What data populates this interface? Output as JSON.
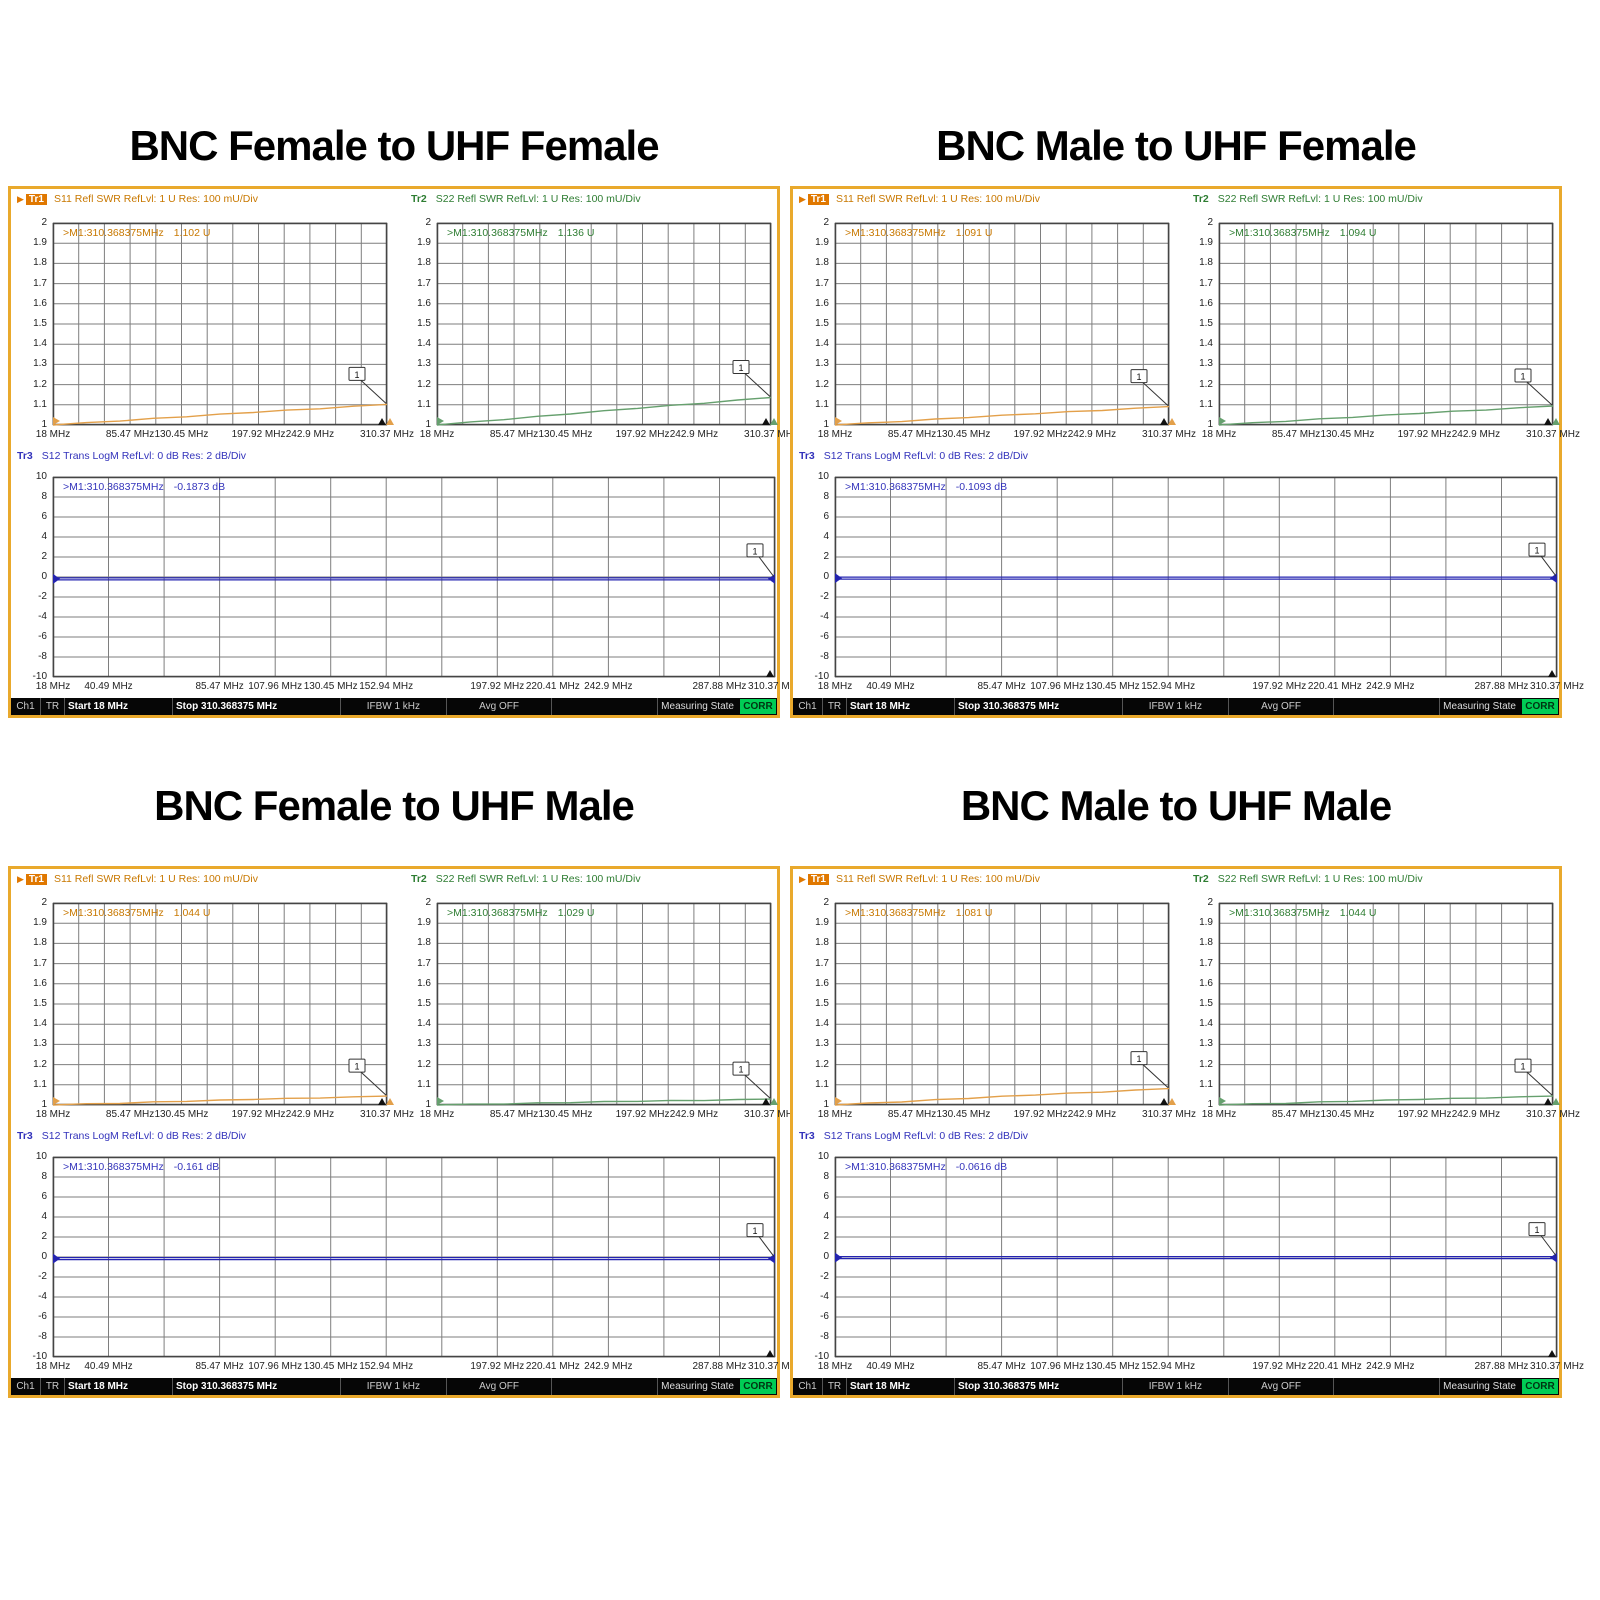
{
  "shared": {
    "tr1_label": "Tr1",
    "tr1_desc": "S11 Refl SWR RefLvl: 1  U Res: 100 mU/Div",
    "tr2_label": "Tr2",
    "tr2_desc": "S22 Refl SWR RefLvl: 1  U Res: 100 mU/Div",
    "tr3_label": "Tr3",
    "tr3_desc": "S12 Trans LogM RefLvl: 0  dB Res: 2  dB/Div",
    "marker_prefix": ">M1:310.368375MHz",
    "marker_flag": "1",
    "active_arrow": "▶"
  },
  "panels": [
    {
      "title": "BNC Female to UHF Female",
      "tr1_marker": "1.102  U",
      "tr2_marker": "1.136  U",
      "tr3_marker": "-0.1873  dB",
      "tr1_end": 1.102,
      "tr2_end": 1.136,
      "tr3_level": -0.1873
    },
    {
      "title": "BNC Male to UHF Female",
      "tr1_marker": "1.091  U",
      "tr2_marker": "1.094  U",
      "tr3_marker": "-0.1093  dB",
      "tr1_end": 1.091,
      "tr2_end": 1.094,
      "tr3_level": -0.1093
    },
    {
      "title": "BNC Female to UHF Male",
      "tr1_marker": "1.044  U",
      "tr2_marker": "1.029  U",
      "tr3_marker": "-0.161  dB",
      "tr1_end": 1.044,
      "tr2_end": 1.029,
      "tr3_level": -0.161
    },
    {
      "title": "BNC Male to UHF Male",
      "tr1_marker": "1.081  U",
      "tr2_marker": "1.044  U",
      "tr3_marker": "-0.0616  dB",
      "tr1_end": 1.081,
      "tr2_end": 1.044,
      "tr3_level": -0.0616
    }
  ],
  "axes": {
    "swr_yticks": [
      "2",
      "1.9",
      "1.8",
      "1.7",
      "1.6",
      "1.5",
      "1.4",
      "1.3",
      "1.2",
      "1.1",
      "1"
    ],
    "db_yticks": [
      "10",
      "8",
      "6",
      "4",
      "2",
      "0",
      "-2",
      "-4",
      "-6",
      "-8",
      "-10"
    ],
    "swr_xticks": [
      {
        "t": "18 MHz",
        "f": 0.0
      },
      {
        "t": "85.47 MHz",
        "f": 0.2308
      },
      {
        "t": "130.45 MHz",
        "f": 0.3846
      },
      {
        "t": "197.92 MHz",
        "f": 0.6154
      },
      {
        "t": "242.9 MHz",
        "f": 0.7692
      },
      {
        "t": "310.37 MHz",
        "f": 1.0
      }
    ],
    "db_xticks": [
      {
        "t": "18 MHz",
        "f": 0.0
      },
      {
        "t": "40.49 MHz",
        "f": 0.0769
      },
      {
        "t": "85.47 MHz",
        "f": 0.2308
      },
      {
        "t": "107.96 MHz",
        "f": 0.3077
      },
      {
        "t": "130.45 MHz",
        "f": 0.3846
      },
      {
        "t": "152.94 MHz",
        "f": 0.4615
      },
      {
        "t": "197.92 MHz",
        "f": 0.6154
      },
      {
        "t": "220.41 MHz",
        "f": 0.6923
      },
      {
        "t": "242.9 MHz",
        "f": 0.7692
      },
      {
        "t": "287.88 MHz",
        "f": 0.9231
      },
      {
        "t": "310.37 MHz",
        "f": 1.0
      }
    ],
    "grid_cols": 13,
    "swr_rows": 10,
    "db_rows": 10
  },
  "status_bar": {
    "ch": "Ch1",
    "tr": "TR",
    "start": "Start 18 MHz",
    "stop": "Stop 310.368375 MHz",
    "ifbw": "IFBW 1 kHz",
    "avg": "Avg OFF",
    "state": "Measuring State",
    "corr": "CORR"
  },
  "colors": {
    "tr1_text": "#c87800",
    "tr1_trace": "#e3a04a",
    "tr2_text": "#2e7d32",
    "tr2_trace": "#66a06e",
    "tr3_text": "#3333bb",
    "tr3_trace": "#2424b0",
    "grid": "#7e7e7e",
    "frame": "#444444",
    "panel_border": "#e9a92c",
    "corr_bg": "#00cc55"
  },
  "chart_data": [
    {
      "type": "line",
      "title": "BNC Female to UHF Female",
      "x_range_MHz": [
        18,
        310.368375
      ],
      "series": [
        {
          "name": "Tr1 S11 Refl SWR",
          "unit": "U",
          "ylim": [
            1,
            2
          ],
          "marker_MHz": 310.368375,
          "marker_value": 1.102,
          "shape": "rises ~linearly from 1.0 at 18 MHz to 1.102 at 310.37 MHz"
        },
        {
          "name": "Tr2 S22 Refl SWR",
          "unit": "U",
          "ylim": [
            1,
            2
          ],
          "marker_MHz": 310.368375,
          "marker_value": 1.136,
          "shape": "rises ~linearly from 1.0 at 18 MHz to 1.136 at 310.37 MHz"
        },
        {
          "name": "Tr3 S12 Trans LogM",
          "unit": "dB",
          "ylim": [
            -10,
            10
          ],
          "marker_MHz": 310.368375,
          "marker_value": -0.1873,
          "shape": "flat at ~0 dB"
        }
      ]
    },
    {
      "type": "line",
      "title": "BNC Male to UHF Female",
      "x_range_MHz": [
        18,
        310.368375
      ],
      "series": [
        {
          "name": "Tr1 S11 Refl SWR",
          "unit": "U",
          "ylim": [
            1,
            2
          ],
          "marker_MHz": 310.368375,
          "marker_value": 1.091,
          "shape": "rises ~linearly from 1.0 at 18 MHz to 1.091 at 310.37 MHz"
        },
        {
          "name": "Tr2 S22 Refl SWR",
          "unit": "U",
          "ylim": [
            1,
            2
          ],
          "marker_MHz": 310.368375,
          "marker_value": 1.094,
          "shape": "rises ~linearly from 1.0 at 18 MHz to 1.094 at 310.37 MHz"
        },
        {
          "name": "Tr3 S12 Trans LogM",
          "unit": "dB",
          "ylim": [
            -10,
            10
          ],
          "marker_MHz": 310.368375,
          "marker_value": -0.1093,
          "shape": "flat at ~0 dB"
        }
      ]
    },
    {
      "type": "line",
      "title": "BNC Female to UHF Male",
      "x_range_MHz": [
        18,
        310.368375
      ],
      "series": [
        {
          "name": "Tr1 S11 Refl SWR",
          "unit": "U",
          "ylim": [
            1,
            2
          ],
          "marker_MHz": 310.368375,
          "marker_value": 1.044,
          "shape": "rises ~linearly from 1.0 at 18 MHz to 1.044 at 310.37 MHz"
        },
        {
          "name": "Tr2 S22 Refl SWR",
          "unit": "U",
          "ylim": [
            1,
            2
          ],
          "marker_MHz": 310.368375,
          "marker_value": 1.029,
          "shape": "rises ~linearly from 1.0 at 18 MHz to 1.029 at 310.37 MHz"
        },
        {
          "name": "Tr3 S12 Trans LogM",
          "unit": "dB",
          "ylim": [
            -10,
            10
          ],
          "marker_MHz": 310.368375,
          "marker_value": -0.161,
          "shape": "flat at ~0 dB"
        }
      ]
    },
    {
      "type": "line",
      "title": "BNC Male to UHF Male",
      "x_range_MHz": [
        18,
        310.368375
      ],
      "series": [
        {
          "name": "Tr1 S11 Refl SWR",
          "unit": "U",
          "ylim": [
            1,
            2
          ],
          "marker_MHz": 310.368375,
          "marker_value": 1.081,
          "shape": "rises ~linearly from 1.0 at 18 MHz to 1.081 at 310.37 MHz"
        },
        {
          "name": "Tr2 S22 Refl SWR",
          "unit": "U",
          "ylim": [
            1,
            2
          ],
          "marker_MHz": 310.368375,
          "marker_value": 1.044,
          "shape": "rises ~linearly from 1.0 at 18 MHz to 1.044 at 310.37 MHz"
        },
        {
          "name": "Tr3 S12 Trans LogM",
          "unit": "dB",
          "ylim": [
            -10,
            10
          ],
          "marker_MHz": 310.368375,
          "marker_value": -0.0616,
          "shape": "flat at ~0 dB"
        }
      ]
    }
  ]
}
